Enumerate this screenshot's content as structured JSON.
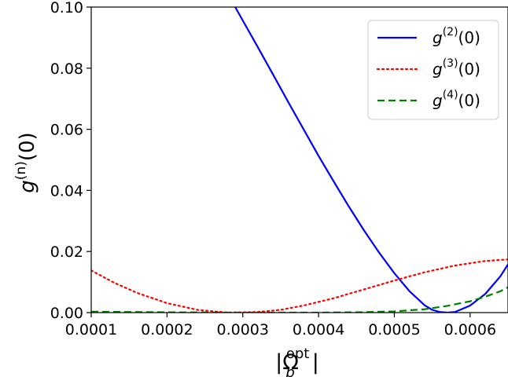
{
  "chart_data": {
    "type": "line",
    "title": "",
    "xlabel": {
      "main": "|Ω",
      "sub": "p",
      "sup": "opt",
      "close": "|"
    },
    "ylabel": {
      "main": "g",
      "sup": "(n)",
      "tail": "(0)"
    },
    "xlim": [
      0.0001,
      0.00065
    ],
    "ylim": [
      0.0,
      0.1
    ],
    "xticks": [
      0.0001,
      0.0002,
      0.0003,
      0.0004,
      0.0005,
      0.0006
    ],
    "xtick_labels": [
      "0.0001",
      "0.0002",
      "0.0003",
      "0.0004",
      "0.0005",
      "0.0006"
    ],
    "yticks": [
      0.0,
      0.02,
      0.04,
      0.06,
      0.08,
      0.1
    ],
    "ytick_labels": [
      "0.00",
      "0.02",
      "0.04",
      "0.06",
      "0.08",
      "0.10"
    ],
    "grid": false,
    "legend_position": "top-right",
    "series": [
      {
        "name": "g(2)(0)",
        "label": {
          "main": "g",
          "sup": "(2)",
          "tail": "(0)"
        },
        "color": "#0000ff",
        "style": "solid",
        "x": [
          0.00029,
          0.0003,
          0.00032,
          0.00034,
          0.00036,
          0.00038,
          0.0004,
          0.00042,
          0.00044,
          0.00046,
          0.00048,
          0.0005,
          0.00052,
          0.00054,
          0.00055,
          0.00056,
          0.00057,
          0.00058,
          0.0006,
          0.00062,
          0.00064,
          0.00065
        ],
        "y": [
          0.1,
          0.0956,
          0.0868,
          0.0779,
          0.0689,
          0.0601,
          0.0513,
          0.0429,
          0.0347,
          0.0269,
          0.0196,
          0.0129,
          0.007,
          0.0024,
          0.0009,
          0.0002,
          0.0,
          0.0002,
          0.0023,
          0.0061,
          0.0119,
          0.0158
        ]
      },
      {
        "name": "g(3)(0)",
        "label": {
          "main": "g",
          "sup": "(3)",
          "tail": "(0)"
        },
        "color": "#ff0000",
        "style": "dotted",
        "x": [
          0.0001,
          0.00013,
          0.00016,
          0.0002,
          0.00024,
          0.00028,
          0.00032,
          0.00035,
          0.00038,
          0.00042,
          0.00046,
          0.0005,
          0.00054,
          0.00058,
          0.00062,
          0.00065
        ],
        "y": [
          0.0138,
          0.0098,
          0.0065,
          0.0031,
          0.0009,
          0.0,
          0.0002,
          0.0009,
          0.0023,
          0.0047,
          0.0076,
          0.0105,
          0.0132,
          0.0154,
          0.0169,
          0.0174
        ]
      },
      {
        "name": "g(4)(0)",
        "label": {
          "main": "g",
          "sup": "(4)",
          "tail": "(0)"
        },
        "color": "#008000",
        "style": "dashed",
        "x": [
          0.0001,
          0.0002,
          0.0003,
          0.0004,
          0.00045,
          0.0005,
          0.00054,
          0.00057,
          0.0006,
          0.00062,
          0.00064,
          0.00065
        ],
        "y": [
          0.0003,
          0.0001,
          0.0,
          0.0,
          0.0001,
          0.0004,
          0.0011,
          0.0022,
          0.0037,
          0.0052,
          0.007,
          0.0083
        ]
      }
    ]
  }
}
